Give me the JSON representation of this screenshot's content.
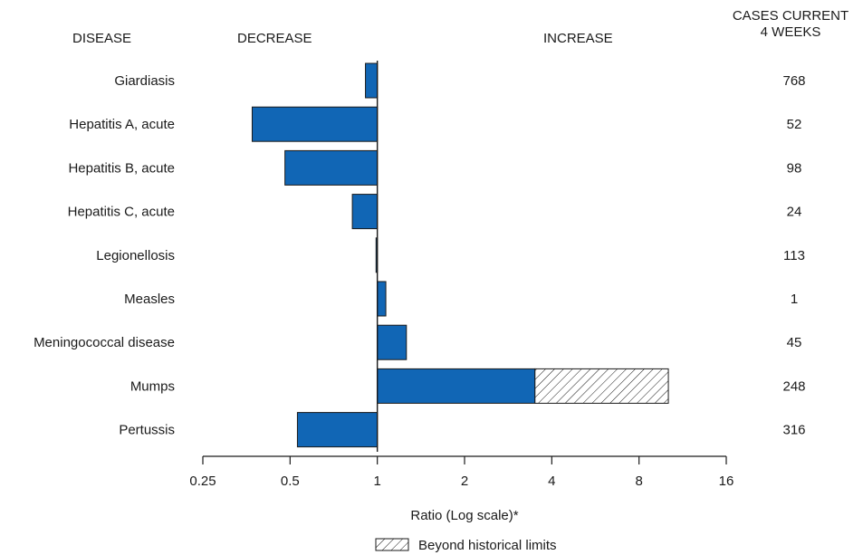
{
  "chart_data": {
    "type": "bar",
    "orientation": "horizontal",
    "x_scale": "log2",
    "headers": {
      "disease": "DISEASE",
      "decrease": "DECREASE",
      "increase": "INCREASE",
      "cases_line1": "CASES CURRENT",
      "cases_line2": "4 WEEKS"
    },
    "xlabel": "Ratio (Log scale)*",
    "xlim": [
      0.25,
      16
    ],
    "ticks": [
      {
        "value": 0.25,
        "label": "0.25"
      },
      {
        "value": 0.5,
        "label": "0.5"
      },
      {
        "value": 1,
        "label": "1"
      },
      {
        "value": 2,
        "label": "2"
      },
      {
        "value": 4,
        "label": "4"
      },
      {
        "value": 8,
        "label": "8"
      },
      {
        "value": 16,
        "label": "16"
      }
    ],
    "reference_value": 1,
    "categories": [
      "Giardiasis",
      "Hepatitis A, acute",
      "Hepatitis B, acute",
      "Hepatitis C, acute",
      "Legionellosis",
      "Measles",
      "Meningococcal disease",
      "Mumps",
      "Pertussis"
    ],
    "values": [
      0.91,
      0.37,
      0.48,
      0.82,
      0.99,
      1.07,
      1.26,
      10.1,
      0.53
    ],
    "beyond_historical_limits_from": [
      null,
      null,
      null,
      null,
      null,
      null,
      null,
      3.5,
      null
    ],
    "cases": [
      "768",
      "52",
      "98",
      "24",
      "113",
      "1",
      "45",
      "248",
      "316"
    ],
    "legend": {
      "label": "Beyond historical limits",
      "position": "bottom-center"
    },
    "colors": {
      "bar": "#1166b5",
      "outline": "#1a1a1a"
    }
  }
}
